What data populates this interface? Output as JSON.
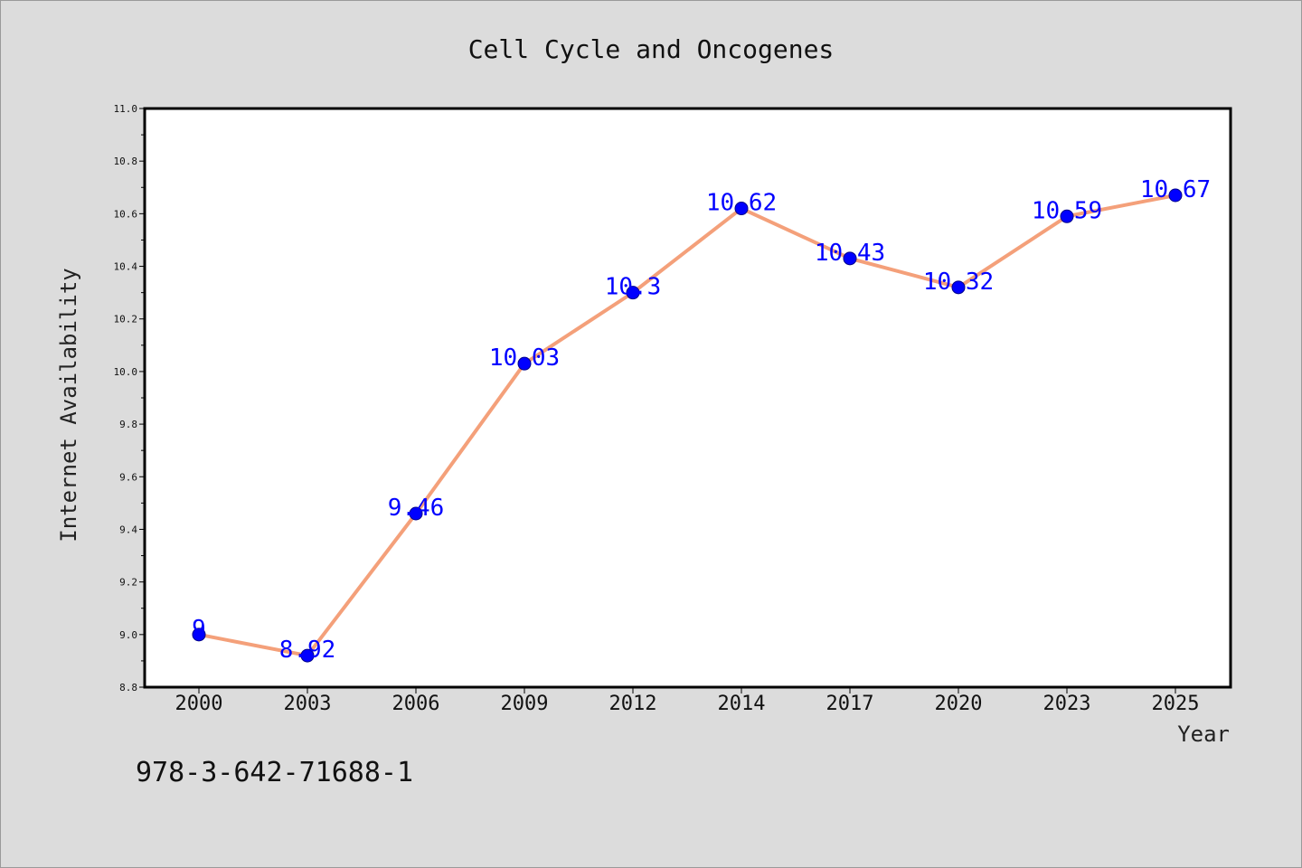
{
  "footer_text": "978-3-642-71688-1",
  "colors": {
    "background": "#dcdcdc",
    "plot_background": "#ffffff",
    "line": "#f4a07a",
    "marker": "#0000ff",
    "data_label": "#0000ff"
  },
  "chart_data": {
    "type": "line",
    "title": "Cell Cycle and Oncogenes",
    "xlabel": "Year",
    "ylabel": "Internet Availability",
    "categories": [
      "2000",
      "2003",
      "2006",
      "2009",
      "2012",
      "2014",
      "2017",
      "2020",
      "2023",
      "2025"
    ],
    "series": [
      {
        "values": [
          9,
          8.92,
          9.46,
          10.03,
          10.3,
          10.62,
          10.43,
          10.32,
          10.59,
          10.67
        ]
      }
    ],
    "data_labels": [
      "9",
      "8.92",
      "9.46",
      "10.03",
      "10.3",
      "10.62",
      "10.43",
      "10.32",
      "10.59",
      "10.67"
    ],
    "ylim": [
      8.8,
      11.0
    ],
    "yticks": [
      "8.8",
      "9.0",
      "9.2",
      "9.4",
      "9.6",
      "9.8",
      "10.0",
      "10.2",
      "10.4",
      "10.6",
      "10.8",
      "11.0"
    ],
    "grid": false,
    "legend": "none"
  }
}
